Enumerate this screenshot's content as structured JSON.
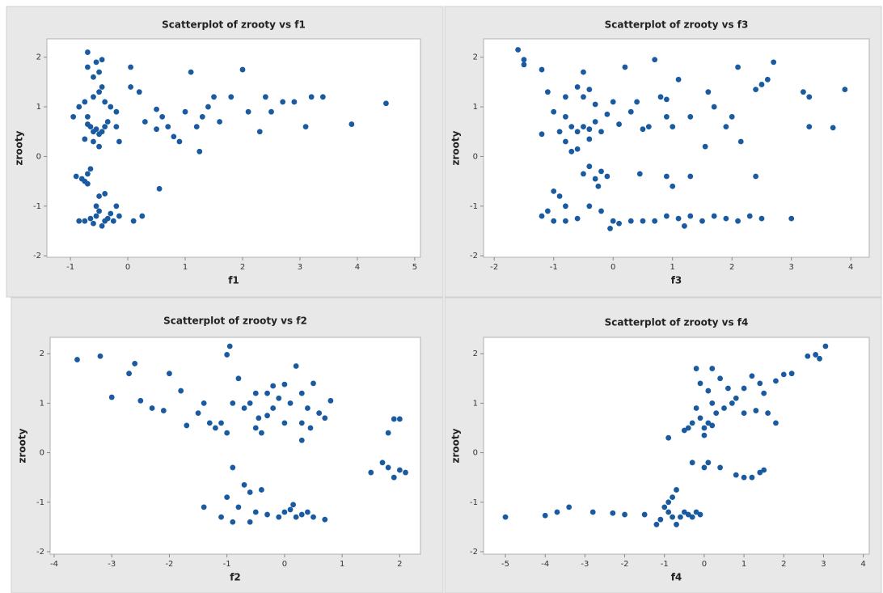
{
  "chart_data": [
    {
      "type": "scatter",
      "title": "Scatterplot of zrooty vs f1",
      "xlabel": "f1",
      "ylabel": "zrooty",
      "color": "#1a5aa0",
      "xlim": [
        -1.41,
        5.1
      ],
      "ylim": [
        -2.03,
        2.37
      ],
      "xticks": [
        -1,
        0,
        1,
        2,
        3,
        4,
        5
      ],
      "yticks": [
        -2,
        -1,
        0,
        1,
        2
      ],
      "x": [
        -0.7,
        -0.55,
        -0.45,
        -0.7,
        -0.5,
        -0.6,
        -0.45,
        -0.85,
        -0.75,
        -0.6,
        -0.5,
        -0.4,
        -0.3,
        -0.7,
        -0.65,
        -0.6,
        -0.55,
        -0.5,
        -0.45,
        -0.4,
        -0.7,
        -0.75,
        -0.6,
        -0.5,
        -0.35,
        -0.2,
        -0.15,
        -0.2,
        -0.95,
        0.05,
        0.05,
        0.2,
        0.3,
        0.5,
        0.6,
        0.7,
        0.8,
        0.9,
        1.0,
        1.1,
        1.2,
        1.3,
        1.4,
        1.5,
        1.6,
        1.8,
        2.0,
        2.1,
        2.3,
        2.4,
        2.5,
        2.7,
        2.9,
        3.1,
        3.2,
        3.4,
        3.9,
        4.5,
        1.25,
        0.55,
        0.5,
        0.25,
        -0.9,
        -0.8,
        -0.75,
        -0.7,
        -0.65,
        -0.7,
        -0.85,
        -0.75,
        -0.65,
        -0.6,
        -0.55,
        -0.5,
        -0.45,
        -0.4,
        -0.35,
        -0.3,
        -0.25,
        -0.2,
        -0.5,
        -0.4,
        -0.55,
        0.1,
        -0.15
      ],
      "values": [
        2.1,
        1.9,
        1.95,
        1.8,
        1.7,
        1.6,
        1.4,
        1.0,
        1.1,
        1.2,
        1.3,
        1.1,
        1.0,
        0.8,
        0.6,
        0.5,
        0.55,
        0.45,
        0.5,
        0.6,
        0.65,
        0.35,
        0.3,
        0.2,
        0.7,
        0.9,
        0.3,
        0.6,
        0.8,
        1.8,
        1.4,
        1.3,
        0.7,
        0.55,
        0.8,
        0.6,
        0.4,
        0.3,
        0.9,
        1.7,
        0.6,
        0.8,
        1.0,
        1.2,
        0.7,
        1.2,
        1.75,
        0.9,
        0.5,
        1.2,
        0.9,
        1.1,
        1.1,
        0.6,
        1.2,
        1.2,
        0.65,
        1.07,
        0.1,
        -0.65,
        0.95,
        -1.2,
        -0.4,
        -0.45,
        -0.5,
        -0.35,
        -0.25,
        -0.55,
        -1.3,
        -1.3,
        -1.25,
        -1.35,
        -1.2,
        -1.1,
        -1.4,
        -1.3,
        -1.25,
        -1.15,
        -1.3,
        -1.0,
        -0.8,
        -0.75,
        -1.0,
        -1.3,
        -1.2
      ]
    },
    {
      "type": "scatter",
      "title": "Scatterplot of zrooty vs f3",
      "xlabel": "f3",
      "ylabel": "zrooty",
      "color": "#1a5aa0",
      "xlim": [
        -2.18,
        4.31
      ],
      "ylim": [
        -2.03,
        2.37
      ],
      "xticks": [
        -2,
        -1,
        0,
        1,
        2,
        3,
        4
      ],
      "yticks": [
        -2,
        -1,
        0,
        1,
        2
      ],
      "x": [
        -1.6,
        -1.5,
        -1.5,
        -1.2,
        -0.5,
        0.2,
        0.7,
        2.1,
        2.7,
        2.6,
        2.5,
        3.9,
        3.2,
        3.3,
        1.6,
        1.1,
        0.8,
        -0.6,
        -0.4,
        -1.1,
        -0.8,
        -0.5,
        -0.3,
        0,
        0.4,
        0.9,
        1.3,
        1.7,
        2.0,
        2.4,
        1.9,
        3.3,
        3.7,
        2.15,
        1.55,
        -1.0,
        -0.8,
        -0.7,
        -0.6,
        -0.5,
        -0.4,
        -0.3,
        -0.2,
        -0.1,
        0.1,
        0.3,
        0.5,
        0.6,
        0.9,
        1.0,
        -0.9,
        -1.2,
        -0.8,
        -0.6,
        -0.7,
        -0.4,
        -0.5,
        -0.4,
        -0.3,
        -0.2,
        -0.1,
        -0.25,
        0.45,
        0.9,
        1.3,
        2.4,
        1.0,
        -1.0,
        -0.9,
        -0.8,
        -1.1,
        -1.2,
        -1.0,
        -0.8,
        -0.6,
        -0.4,
        -0.2,
        0,
        0.1,
        0.3,
        0.5,
        0.7,
        0.9,
        1.1,
        1.3,
        1.5,
        1.7,
        1.9,
        2.1,
        2.3,
        2.5,
        3.0,
        -0.05,
        1.2
      ],
      "values": [
        2.15,
        1.95,
        1.85,
        1.75,
        1.7,
        1.8,
        1.95,
        1.8,
        1.9,
        1.55,
        1.45,
        1.35,
        1.3,
        1.2,
        1.3,
        1.55,
        1.2,
        1.4,
        1.35,
        1.3,
        1.2,
        1.2,
        1.05,
        1.1,
        1.1,
        1.15,
        0.8,
        1.0,
        0.8,
        1.35,
        0.6,
        0.6,
        0.58,
        0.3,
        0.2,
        0.9,
        0.8,
        0.6,
        0.5,
        0.6,
        0.55,
        0.7,
        0.5,
        0.85,
        0.65,
        0.9,
        0.55,
        0.6,
        0.8,
        0.6,
        0.5,
        0.45,
        0.3,
        0.15,
        0.1,
        0.35,
        -0.35,
        -0.2,
        -0.45,
        -0.3,
        -0.4,
        -0.6,
        -0.35,
        -0.4,
        -0.4,
        -0.4,
        -0.6,
        -0.7,
        -0.8,
        -1.0,
        -1.1,
        -1.2,
        -1.3,
        -1.3,
        -1.25,
        -1.0,
        -1.1,
        -1.3,
        -1.35,
        -1.3,
        -1.3,
        -1.3,
        -1.2,
        -1.25,
        -1.2,
        -1.3,
        -1.2,
        -1.25,
        -1.3,
        -1.2,
        -1.25,
        -1.25,
        -1.45,
        -1.4
      ]
    },
    {
      "type": "scatter",
      "title": "Scatterplot of zrooty vs f2",
      "xlabel": "f2",
      "ylabel": "zrooty",
      "color": "#1a5aa0",
      "xlim": [
        -4.07,
        2.36
      ],
      "ylim": [
        -2.05,
        2.33
      ],
      "xticks": [
        -4,
        -3,
        -2,
        -1,
        0,
        1,
        2
      ],
      "yticks": [
        -2,
        -1,
        0,
        1,
        2
      ],
      "x": [
        -3.6,
        -3.2,
        -3.0,
        -2.7,
        -2.6,
        -2.5,
        -2.3,
        -2.1,
        -2.0,
        -1.8,
        -1.7,
        -1.5,
        -1.4,
        -1.3,
        -1.2,
        -1.1,
        -1.0,
        -0.9,
        -0.95,
        -1.0,
        -0.8,
        -0.7,
        -0.6,
        -0.5,
        -0.5,
        -0.4,
        -0.45,
        -0.3,
        -0.2,
        -0.1,
        0,
        0.1,
        0.2,
        0.3,
        0.4,
        0.3,
        0.45,
        0.6,
        0.7,
        0.5,
        0.8,
        0.3,
        -0.2,
        0,
        -0.3,
        1.9,
        2.0,
        1.8,
        1.5,
        1.7,
        1.8,
        1.9,
        2.0,
        2.1,
        -0.9,
        -0.7,
        -1.4,
        -1.0,
        -0.8,
        -0.6,
        -0.4,
        -0.5,
        -0.3,
        -0.1,
        0,
        0.1,
        0.2,
        0.3,
        0.4,
        0.5,
        -0.9,
        -0.6,
        -1.1,
        0.15,
        0.7
      ],
      "values": [
        1.88,
        1.95,
        1.12,
        1.6,
        1.8,
        1.05,
        0.9,
        0.85,
        1.6,
        1.25,
        0.55,
        0.8,
        1.0,
        0.6,
        0.5,
        0.6,
        0.4,
        1.0,
        2.15,
        1.98,
        1.5,
        0.9,
        1.0,
        1.2,
        0.5,
        0.4,
        0.7,
        1.2,
        1.35,
        1.1,
        1.38,
        1.0,
        1.75,
        1.2,
        0.9,
        0.6,
        0.5,
        0.8,
        0.7,
        1.4,
        1.05,
        0.25,
        0.9,
        0.6,
        0.75,
        0.68,
        0.68,
        0.4,
        -0.4,
        -0.2,
        -0.3,
        -0.5,
        -0.35,
        -0.4,
        -0.3,
        -0.65,
        -1.1,
        -0.9,
        -1.1,
        -0.8,
        -0.75,
        -1.2,
        -1.25,
        -1.3,
        -1.2,
        -1.15,
        -1.3,
        -1.25,
        -1.2,
        -1.3,
        -1.4,
        -1.4,
        -1.3,
        -1.05,
        -1.35
      ]
    },
    {
      "type": "scatter",
      "title": "Scatterplot of zrooty vs f4",
      "xlabel": "f4",
      "ylabel": "zrooty",
      "color": "#1a5aa0",
      "xlim": [
        -5.55,
        4.15
      ],
      "ylim": [
        -2.05,
        2.33
      ],
      "xticks": [
        -5,
        -4,
        -3,
        -2,
        -1,
        0,
        1,
        2,
        3,
        4
      ],
      "yticks": [
        -2,
        -1,
        0,
        1,
        2
      ],
      "x": [
        3.05,
        2.9,
        2.8,
        2.6,
        2.2,
        2.0,
        1.8,
        1.5,
        1.4,
        1.2,
        1.0,
        0.8,
        0.6,
        0.4,
        0.2,
        -0.2,
        -0.1,
        0.1,
        0.2,
        0.3,
        0.1,
        0,
        -0.1,
        -0.2,
        -0.3,
        -0.4,
        -0.5,
        0,
        0.2,
        0.5,
        0.7,
        1.0,
        1.3,
        1.6,
        1.8,
        -0.9,
        -0.3,
        0,
        0.1,
        0.4,
        0.8,
        1.0,
        1.2,
        1.4,
        1.5,
        -0.7,
        -0.8,
        -0.9,
        -1.0,
        -0.9,
        -0.8,
        -0.6,
        -0.5,
        -0.4,
        -0.3,
        -0.2,
        -0.1,
        -1.1,
        -1.5,
        -2.0,
        -2.3,
        -2.8,
        -3.4,
        -3.7,
        -4.0,
        -5.0,
        -1.2,
        -0.7
      ],
      "values": [
        2.15,
        1.9,
        1.98,
        1.95,
        1.6,
        1.58,
        1.45,
        1.2,
        1.4,
        1.55,
        1.3,
        1.1,
        1.3,
        1.5,
        1.7,
        1.7,
        1.4,
        1.25,
        1.0,
        0.8,
        0.6,
        0.5,
        0.7,
        0.9,
        0.6,
        0.5,
        0.45,
        0.35,
        0.55,
        0.9,
        1.0,
        0.8,
        0.85,
        0.8,
        0.6,
        0.3,
        -0.2,
        -0.3,
        -0.2,
        -0.3,
        -0.45,
        -0.5,
        -0.5,
        -0.4,
        -0.35,
        -0.75,
        -0.9,
        -1.0,
        -1.1,
        -1.2,
        -1.3,
        -1.3,
        -1.2,
        -1.25,
        -1.3,
        -1.2,
        -1.25,
        -1.35,
        -1.25,
        -1.25,
        -1.22,
        -1.2,
        -1.1,
        -1.2,
        -1.27,
        -1.3,
        -1.45,
        -1.45
      ]
    }
  ]
}
